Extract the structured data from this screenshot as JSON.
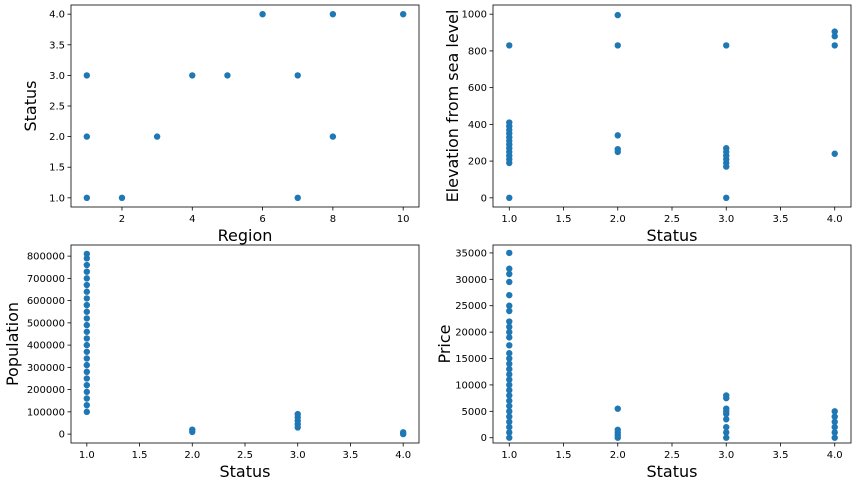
{
  "chart_data": [
    {
      "type": "scatter",
      "xlabel": "Region",
      "ylabel": "Status",
      "xlim": [
        0.55,
        10.45
      ],
      "ylim": [
        0.85,
        4.15
      ],
      "xticks": [
        2,
        4,
        6,
        8,
        10
      ],
      "yticks": [
        1.0,
        1.5,
        2.0,
        2.5,
        3.0,
        3.5,
        4.0
      ],
      "xtick_labels": [
        "2",
        "4",
        "6",
        "8",
        "10"
      ],
      "ytick_labels": [
        "1.0",
        "1.5",
        "2.0",
        "2.5",
        "3.0",
        "3.5",
        "4.0"
      ],
      "color": "#1f77b4",
      "points": [
        [
          1,
          1
        ],
        [
          1,
          2
        ],
        [
          1,
          3
        ],
        [
          2,
          1
        ],
        [
          3,
          2
        ],
        [
          4,
          3
        ],
        [
          5,
          3
        ],
        [
          6,
          4
        ],
        [
          7,
          1
        ],
        [
          7,
          3
        ],
        [
          8,
          2
        ],
        [
          8,
          4
        ],
        [
          10,
          4
        ]
      ]
    },
    {
      "type": "scatter",
      "xlabel": "Status",
      "ylabel": "Elevation from sea level",
      "xlim": [
        0.85,
        4.15
      ],
      "ylim": [
        -50,
        1050
      ],
      "xticks": [
        1.0,
        1.5,
        2.0,
        2.5,
        3.0,
        3.5,
        4.0
      ],
      "yticks": [
        0,
        200,
        400,
        600,
        800,
        1000
      ],
      "xtick_labels": [
        "1.0",
        "1.5",
        "2.0",
        "2.5",
        "3.0",
        "3.5",
        "4.0"
      ],
      "ytick_labels": [
        "0",
        "200",
        "400",
        "600",
        "800",
        "1000"
      ],
      "color": "#1f77b4",
      "points": [
        [
          1,
          0
        ],
        [
          1,
          190
        ],
        [
          1,
          210
        ],
        [
          1,
          230
        ],
        [
          1,
          250
        ],
        [
          1,
          270
        ],
        [
          1,
          290
        ],
        [
          1,
          310
        ],
        [
          1,
          330
        ],
        [
          1,
          350
        ],
        [
          1,
          370
        ],
        [
          1,
          390
        ],
        [
          1,
          410
        ],
        [
          1,
          830
        ],
        [
          2,
          250
        ],
        [
          2,
          265
        ],
        [
          2,
          340
        ],
        [
          2,
          830
        ],
        [
          2,
          995
        ],
        [
          3,
          0
        ],
        [
          3,
          170
        ],
        [
          3,
          190
        ],
        [
          3,
          210
        ],
        [
          3,
          230
        ],
        [
          3,
          250
        ],
        [
          3,
          270
        ],
        [
          3,
          830
        ],
        [
          4,
          240
        ],
        [
          4,
          830
        ],
        [
          4,
          880
        ],
        [
          4,
          905
        ]
      ]
    },
    {
      "type": "scatter",
      "xlabel": "Status",
      "ylabel": "Population",
      "xlim": [
        0.85,
        4.15
      ],
      "ylim": [
        -40000,
        850000
      ],
      "xticks": [
        1.0,
        1.5,
        2.0,
        2.5,
        3.0,
        3.5,
        4.0
      ],
      "yticks": [
        0,
        100000,
        200000,
        300000,
        400000,
        500000,
        600000,
        700000,
        800000
      ],
      "xtick_labels": [
        "1.0",
        "1.5",
        "2.0",
        "2.5",
        "3.0",
        "3.5",
        "4.0"
      ],
      "ytick_labels": [
        "0",
        "100000",
        "200000",
        "300000",
        "400000",
        "500000",
        "600000",
        "700000",
        "800000"
      ],
      "color": "#1f77b4",
      "points": [
        [
          1,
          100000
        ],
        [
          1,
          130000
        ],
        [
          1,
          160000
        ],
        [
          1,
          190000
        ],
        [
          1,
          220000
        ],
        [
          1,
          250000
        ],
        [
          1,
          280000
        ],
        [
          1,
          310000
        ],
        [
          1,
          340000
        ],
        [
          1,
          370000
        ],
        [
          1,
          400000
        ],
        [
          1,
          430000
        ],
        [
          1,
          460000
        ],
        [
          1,
          490000
        ],
        [
          1,
          520000
        ],
        [
          1,
          550000
        ],
        [
          1,
          580000
        ],
        [
          1,
          610000
        ],
        [
          1,
          640000
        ],
        [
          1,
          670000
        ],
        [
          1,
          700000
        ],
        [
          1,
          730000
        ],
        [
          1,
          760000
        ],
        [
          1,
          790000
        ],
        [
          1,
          810000
        ],
        [
          2,
          10000
        ],
        [
          2,
          20000
        ],
        [
          3,
          30000
        ],
        [
          3,
          45000
        ],
        [
          3,
          60000
        ],
        [
          3,
          75000
        ],
        [
          3,
          90000
        ],
        [
          4,
          0
        ],
        [
          4,
          8000
        ]
      ]
    },
    {
      "type": "scatter",
      "xlabel": "Status",
      "ylabel": "Price",
      "xlim": [
        0.85,
        4.15
      ],
      "ylim": [
        -1000,
        36500
      ],
      "xticks": [
        1.0,
        1.5,
        2.0,
        2.5,
        3.0,
        3.5,
        4.0
      ],
      "yticks": [
        0,
        5000,
        10000,
        15000,
        20000,
        25000,
        30000,
        35000
      ],
      "xtick_labels": [
        "1.0",
        "1.5",
        "2.0",
        "2.5",
        "3.0",
        "3.5",
        "4.0"
      ],
      "ytick_labels": [
        "0",
        "5000",
        "10000",
        "15000",
        "20000",
        "25000",
        "30000",
        "35000"
      ],
      "color": "#1f77b4",
      "points": [
        [
          1,
          0
        ],
        [
          1,
          1000
        ],
        [
          1,
          2000
        ],
        [
          1,
          3000
        ],
        [
          1,
          4000
        ],
        [
          1,
          5000
        ],
        [
          1,
          6000
        ],
        [
          1,
          7000
        ],
        [
          1,
          8000
        ],
        [
          1,
          9000
        ],
        [
          1,
          10000
        ],
        [
          1,
          11000
        ],
        [
          1,
          12000
        ],
        [
          1,
          13000
        ],
        [
          1,
          14000
        ],
        [
          1,
          15000
        ],
        [
          1,
          16000
        ],
        [
          1,
          17500
        ],
        [
          1,
          19000
        ],
        [
          1,
          20000
        ],
        [
          1,
          21000
        ],
        [
          1,
          22000
        ],
        [
          1,
          24000
        ],
        [
          1,
          25000
        ],
        [
          1,
          27000
        ],
        [
          1,
          29500
        ],
        [
          1,
          31000
        ],
        [
          1,
          32000
        ],
        [
          1,
          35000
        ],
        [
          2,
          0
        ],
        [
          2,
          500
        ],
        [
          2,
          1000
        ],
        [
          2,
          1500
        ],
        [
          2,
          5500
        ],
        [
          3,
          0
        ],
        [
          3,
          1000
        ],
        [
          3,
          2000
        ],
        [
          3,
          3500
        ],
        [
          3,
          4500
        ],
        [
          3,
          5000
        ],
        [
          3,
          5500
        ],
        [
          3,
          7500
        ],
        [
          3,
          8000
        ],
        [
          4,
          0
        ],
        [
          4,
          1000
        ],
        [
          4,
          2000
        ],
        [
          4,
          3000
        ],
        [
          4,
          4000
        ],
        [
          4,
          5000
        ]
      ]
    }
  ]
}
